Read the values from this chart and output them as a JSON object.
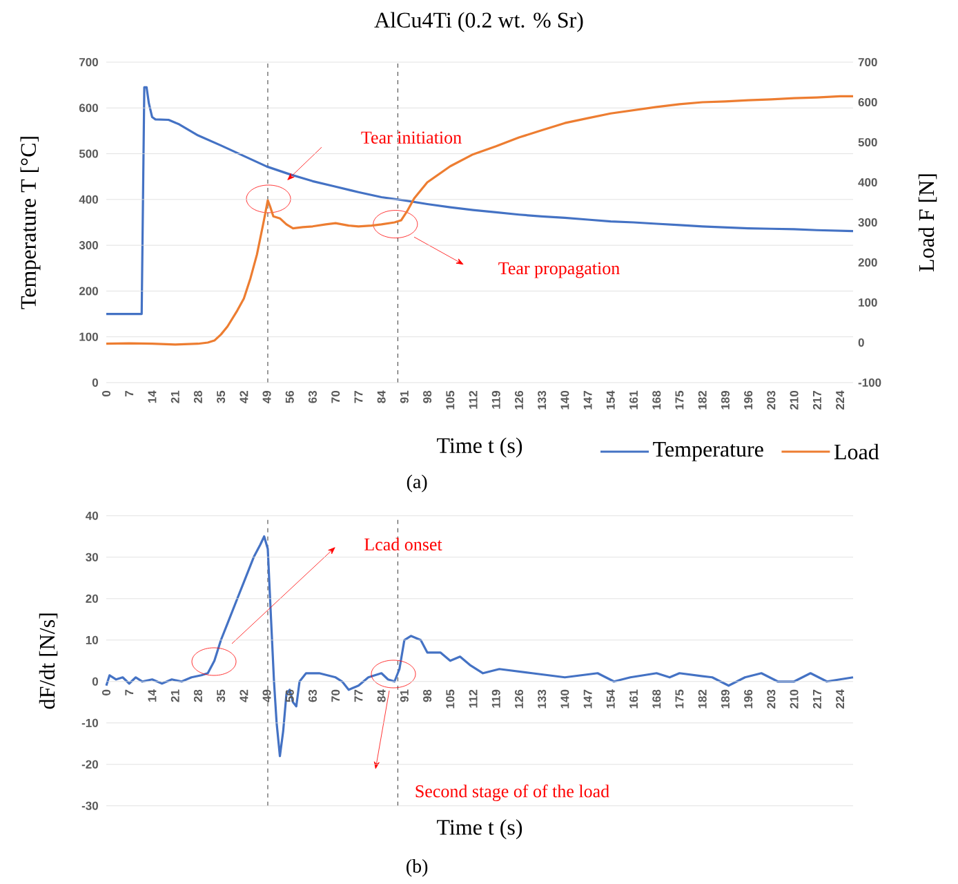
{
  "chart_data": [
    {
      "type": "line",
      "title": "AlCu4Ti (0.2 wt. % Sr)",
      "xlabel": "Time t (s)",
      "ylabel": "Temperature T [°C]",
      "y2label": "Load F [N]",
      "xlim": [
        0,
        228
      ],
      "xticks": [
        0,
        7,
        14,
        21,
        28,
        35,
        42,
        49,
        56,
        63,
        70,
        77,
        84,
        91,
        98,
        105,
        112,
        119,
        126,
        133,
        140,
        147,
        154,
        161,
        168,
        175,
        182,
        189,
        196,
        203,
        210,
        217,
        224
      ],
      "ylim": [
        0,
        700
      ],
      "yticks": [
        0,
        100,
        200,
        300,
        400,
        500,
        600,
        700
      ],
      "y2lim": [
        -100,
        700
      ],
      "y2ticks": [
        -100,
        0,
        100,
        200,
        300,
        400,
        500,
        600,
        700
      ],
      "grid": "y",
      "legend": "bottom",
      "marker": "none",
      "series": [
        {
          "name": "Temperature",
          "color": "#4472c4",
          "x": [
            0,
            10.8,
            11.6,
            12.3,
            13,
            14,
            15,
            19,
            22,
            28,
            35,
            42,
            49,
            56,
            63,
            70,
            77,
            84,
            91,
            98,
            105,
            112,
            119,
            126,
            133,
            140,
            147,
            154,
            161,
            168,
            175,
            182,
            189,
            196,
            203,
            210,
            217,
            228
          ],
          "values": [
            150,
            150,
            645,
            645,
            610,
            580,
            575,
            574,
            565,
            540,
            518,
            495,
            472,
            455,
            440,
            428,
            416,
            405,
            398,
            390,
            383,
            377,
            372,
            367,
            363,
            360,
            356,
            352,
            350,
            347,
            344,
            341,
            339,
            337,
            336,
            335,
            333,
            331
          ]
        },
        {
          "name": "Load",
          "color": "#ed7d31",
          "axis": "y2",
          "x": [
            0,
            7,
            14,
            21,
            28,
            31,
            33,
            35,
            37,
            40,
            42,
            44,
            46,
            48,
            49.3,
            50,
            51,
            53,
            55,
            57,
            60,
            63,
            67,
            70,
            74,
            77,
            81,
            84,
            88,
            90,
            92,
            94,
            98,
            105,
            112,
            119,
            126,
            133,
            140,
            147,
            154,
            161,
            168,
            175,
            182,
            189,
            196,
            203,
            210,
            217,
            224,
            228
          ],
          "values": [
            -3,
            -2,
            -3,
            -5,
            -3,
            0,
            5,
            20,
            40,
            80,
            110,
            160,
            220,
            300,
            355,
            340,
            315,
            310,
            295,
            285,
            288,
            290,
            295,
            298,
            292,
            290,
            292,
            295,
            300,
            305,
            330,
            360,
            400,
            440,
            470,
            490,
            512,
            530,
            548,
            560,
            572,
            580,
            588,
            595,
            600,
            602,
            605,
            607,
            610,
            612,
            615,
            615
          ]
        }
      ],
      "ref_lines": [
        {
          "axis": "x",
          "value": 49.3,
          "color": "#000000",
          "line_style": "dashed"
        },
        {
          "axis": "x",
          "value": 89,
          "color": "#000000",
          "line_style": "dashed"
        }
      ],
      "annotations": [
        "Tear initiation",
        "Tear propagation",
        "(a)"
      ]
    },
    {
      "type": "line",
      "xlabel": "Time t (s)",
      "ylabel": "dF/dt [N/s]",
      "xlim": [
        0,
        228
      ],
      "xticks": [
        0,
        7,
        14,
        21,
        28,
        35,
        42,
        49,
        56,
        63,
        70,
        77,
        84,
        91,
        98,
        105,
        112,
        119,
        126,
        133,
        140,
        147,
        154,
        161,
        168,
        175,
        182,
        189,
        196,
        203,
        210,
        217,
        224
      ],
      "ylim": [
        -30,
        40
      ],
      "yticks": [
        -30,
        -20,
        -10,
        0,
        10,
        20,
        30,
        40
      ],
      "grid": "y",
      "marker": "none",
      "series": [
        {
          "color": "#4472c4",
          "x": [
            0,
            1,
            3,
            5,
            7,
            9,
            11,
            14,
            17,
            20,
            23,
            26,
            29,
            31,
            33,
            35,
            37,
            40,
            42,
            45,
            47,
            48.2,
            49.3,
            50.3,
            51.2,
            52,
            53,
            54,
            55,
            56,
            57,
            58,
            59,
            61,
            65,
            70,
            72,
            74,
            77,
            80,
            84,
            86,
            88,
            89.5,
            91,
            93,
            96,
            98,
            102,
            105,
            108,
            111,
            115,
            120,
            130,
            140,
            150,
            155,
            160,
            168,
            172,
            175,
            185,
            190,
            195,
            200,
            205,
            210,
            215,
            220,
            228
          ],
          "values": [
            -1,
            1.5,
            0.5,
            1,
            -0.5,
            1,
            0,
            0.5,
            -0.5,
            0.5,
            0,
            1,
            1.5,
            2,
            5,
            10,
            14,
            20,
            24,
            30,
            33,
            35,
            32,
            15,
            0,
            -10,
            -18,
            -12,
            -3,
            -2,
            -5,
            -6,
            0,
            2,
            2,
            1,
            0,
            -2,
            -1,
            1,
            2,
            0.5,
            0,
            3,
            10,
            11,
            10,
            7,
            7,
            5,
            6,
            4,
            2,
            3,
            2,
            1,
            2,
            0,
            1,
            2,
            1,
            2,
            1,
            -1,
            1,
            2,
            0,
            0,
            2,
            0,
            1
          ]
        }
      ],
      "ref_lines": [
        {
          "axis": "x",
          "value": 49.3,
          "color": "#000000",
          "line_style": "dashed"
        },
        {
          "axis": "x",
          "value": 89,
          "color": "#000000",
          "line_style": "dashed"
        }
      ],
      "annotations": [
        "Lcad onset",
        "Second stage of of the load",
        "(b)"
      ]
    }
  ]
}
